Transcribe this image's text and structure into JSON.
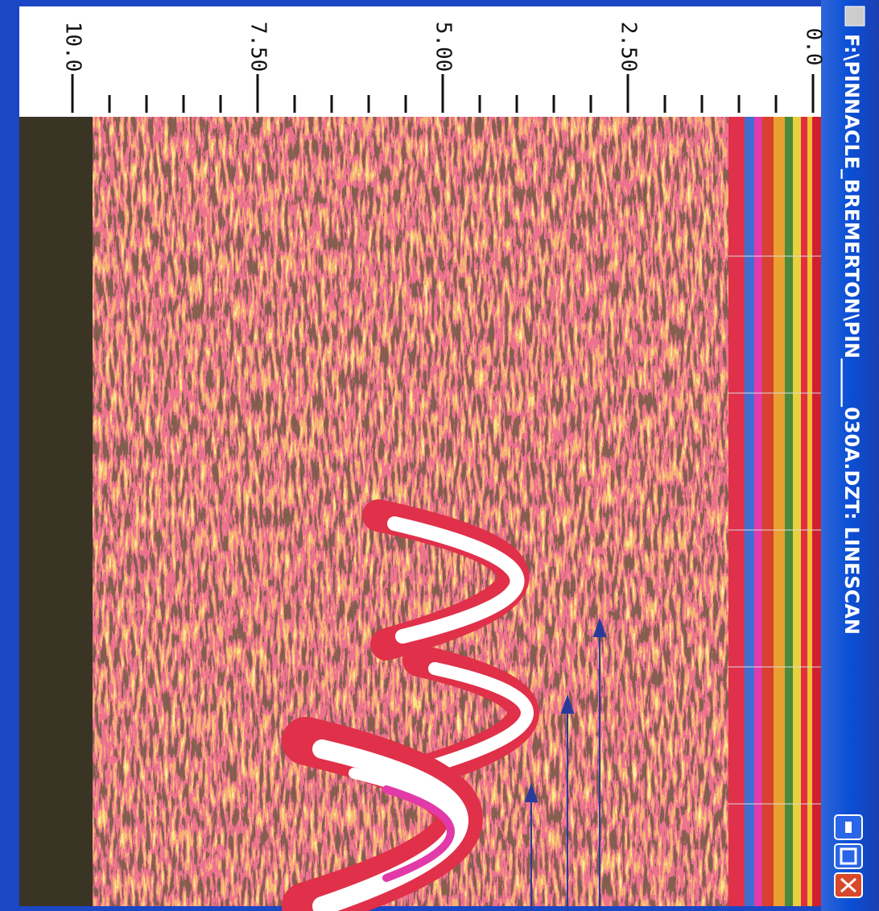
{
  "window": {
    "title": "F:\\PINNACLE_BREMERTON\\PIN_____030A.DZT: LINESCAN"
  },
  "ruler": {
    "lim": [
      0,
      10
    ],
    "ticks": [
      {
        "value": 0,
        "label": "0.0"
      },
      {
        "value": 2.5,
        "label": "2.50"
      },
      {
        "value": 5,
        "label": "5.00"
      },
      {
        "value": 7.5,
        "label": "7.50"
      },
      {
        "value": 10,
        "label": "10.0"
      }
    ],
    "minor_ticks": [
      0.5,
      1,
      1.5,
      2,
      3,
      3.5,
      4,
      4.5,
      5.5,
      6,
      6.5,
      7,
      8,
      8.5,
      9,
      9.5
    ]
  }
}
